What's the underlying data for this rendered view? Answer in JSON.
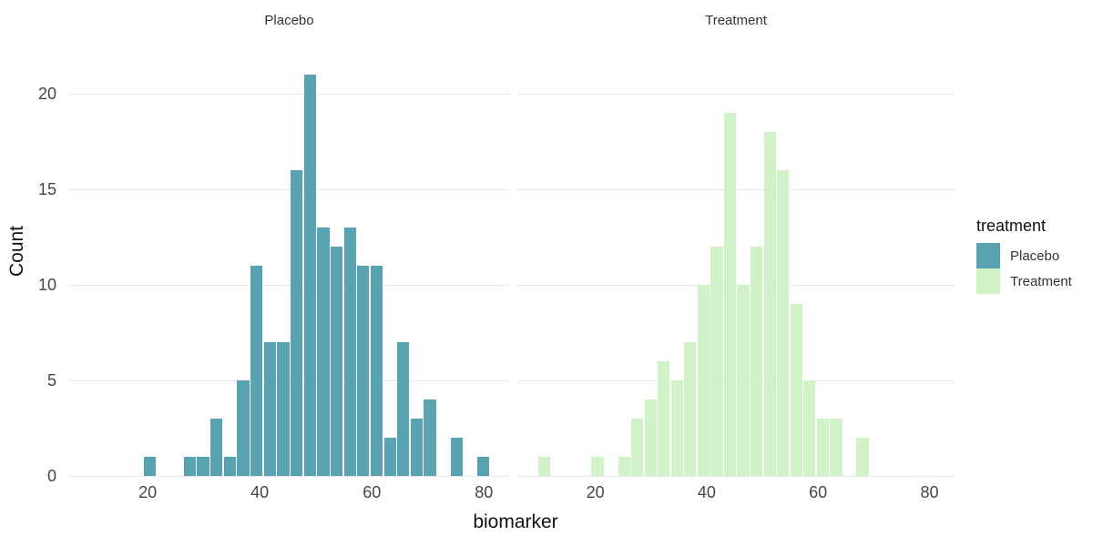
{
  "figure": {
    "background": "#ffffff",
    "colors": {
      "grid": "#E9E9E9",
      "tick_label": "#454545",
      "axis_title": "#111111",
      "facet_title": "#333333",
      "placebo_fill": "#58A3B1",
      "treatment_fill": "#CFF2C7",
      "bar_gap": "#ffffff"
    }
  },
  "chart_data": {
    "type": "bar",
    "subtype": "faceted-histogram",
    "faceted_by": "treatment",
    "xlabel": "biomarker",
    "ylabel": "Count",
    "x_ticks": [
      20,
      40,
      60,
      80
    ],
    "y_ticks": [
      0,
      5,
      10,
      15,
      20
    ],
    "x_range": [
      6,
      84.5
    ],
    "y_range": [
      0,
      22.9
    ],
    "binwidth": 2.38,
    "grid": "horizontal-only",
    "legend": {
      "title": "treatment",
      "position": "right",
      "entries": [
        {
          "label": "Placebo",
          "color": "#58A3B1"
        },
        {
          "label": "Treatment",
          "color": "#CFF2C7"
        }
      ]
    },
    "facets": [
      {
        "title": "Placebo",
        "fill": "#58A3B1",
        "bins_note": "pairs of [bin_left_edge_x, count]",
        "bins": [
          [
            19.2,
            1
          ],
          [
            26.34,
            1
          ],
          [
            28.72,
            1
          ],
          [
            31.1,
            3
          ],
          [
            33.48,
            1
          ],
          [
            35.86,
            5
          ],
          [
            38.24,
            11
          ],
          [
            40.62,
            7
          ],
          [
            43.0,
            7
          ],
          [
            45.38,
            16
          ],
          [
            47.76,
            21
          ],
          [
            50.14,
            13
          ],
          [
            52.52,
            12
          ],
          [
            54.9,
            13
          ],
          [
            57.28,
            11
          ],
          [
            59.66,
            11
          ],
          [
            62.04,
            2
          ],
          [
            64.42,
            7
          ],
          [
            66.8,
            3
          ],
          [
            69.18,
            4
          ],
          [
            73.94,
            2
          ],
          [
            78.7,
            1
          ]
        ]
      },
      {
        "title": "Treatment",
        "fill": "#CFF2C7",
        "bins_note": "pairs of [bin_left_edge_x, count]",
        "bins": [
          [
            9.68,
            1
          ],
          [
            19.2,
            1
          ],
          [
            23.96,
            1
          ],
          [
            26.34,
            3
          ],
          [
            28.72,
            4
          ],
          [
            31.1,
            6
          ],
          [
            33.48,
            5
          ],
          [
            35.86,
            7
          ],
          [
            38.24,
            10
          ],
          [
            40.62,
            12
          ],
          [
            43.0,
            19
          ],
          [
            45.38,
            10
          ],
          [
            47.76,
            12
          ],
          [
            50.14,
            18
          ],
          [
            52.52,
            16
          ],
          [
            54.9,
            9
          ],
          [
            57.28,
            5
          ],
          [
            59.66,
            3
          ],
          [
            62.04,
            3
          ],
          [
            66.8,
            2
          ]
        ]
      }
    ]
  }
}
